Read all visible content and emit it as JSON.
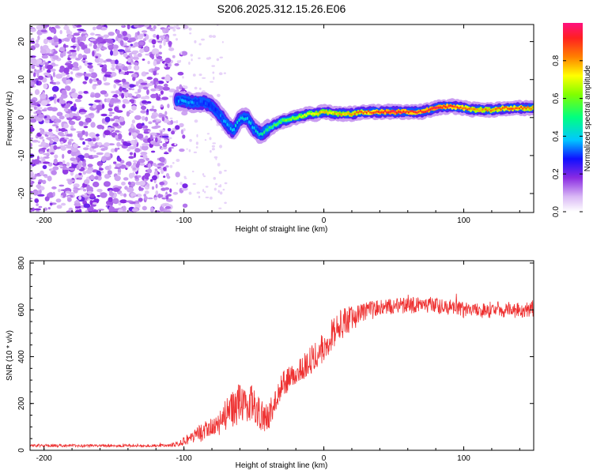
{
  "title": "S206.2025.312.15.26.E06",
  "chart_data": [
    {
      "type": "heatmap",
      "name": "spectrogram",
      "xlabel": "Height of straight line (km)",
      "ylabel": "Frequency (Hz)",
      "xlim": [
        -210,
        150
      ],
      "ylim": [
        -25,
        24.5
      ],
      "xticks": [
        -200,
        -100,
        0,
        100
      ],
      "yticks": [
        -20,
        -10,
        0,
        10,
        20
      ],
      "noise_region_x": [
        -210,
        -110
      ],
      "ridge": {
        "x": [
          -105,
          -100,
          -95,
          -90,
          -85,
          -80,
          -75,
          -70,
          -65,
          -60,
          -55,
          -50,
          -45,
          -40,
          -35,
          -30,
          -25,
          -20,
          -15,
          -10,
          -5,
          0,
          10,
          20,
          30,
          40,
          50,
          60,
          70,
          80,
          90,
          100,
          110,
          120,
          130,
          140,
          150
        ],
        "freq": [
          4.5,
          4.5,
          4.0,
          4.0,
          4.0,
          3.0,
          1.0,
          -1.5,
          -3.5,
          -0.5,
          0,
          -3.0,
          -4.5,
          -3.0,
          -2.0,
          -1.0,
          -0.5,
          0,
          0.5,
          1.0,
          1.0,
          1.5,
          1.0,
          1.0,
          1.5,
          1.5,
          1.5,
          1.5,
          1.5,
          2.5,
          3.0,
          2.5,
          2.0,
          2.0,
          2.5,
          2.5,
          2.5
        ],
        "amplitude": [
          0.3,
          0.35,
          0.35,
          0.3,
          0.3,
          0.3,
          0.3,
          0.35,
          0.4,
          0.4,
          0.4,
          0.4,
          0.45,
          0.5,
          0.55,
          0.6,
          0.6,
          0.65,
          0.7,
          0.7,
          0.75,
          0.75,
          0.75,
          0.8,
          0.85,
          0.9,
          0.95,
          0.9,
          0.9,
          0.95,
          0.9,
          0.85,
          0.8,
          0.8,
          0.85,
          0.85,
          0.8
        ]
      },
      "colorbar": {
        "label": "Normalized spectral amplitude",
        "range": [
          0,
          1
        ],
        "ticks": [
          "0.0",
          "0.2",
          "0.4",
          "0.6",
          "0.8"
        ],
        "tick_values": [
          0,
          0.2,
          0.4,
          0.6,
          0.8
        ]
      }
    },
    {
      "type": "line",
      "name": "snr",
      "xlabel": "Height of straight line (km)",
      "ylabel": "SNR (10 * v/v)",
      "xlim": [
        -210,
        150
      ],
      "ylim": [
        0,
        810
      ],
      "xticks": [
        -200,
        -100,
        0,
        100
      ],
      "yticks": [
        0,
        200,
        400,
        600,
        800
      ],
      "color": "#ee3030",
      "trend": {
        "x": [
          -210,
          -110,
          -100,
          -90,
          -80,
          -70,
          -60,
          -50,
          -45,
          -40,
          -35,
          -30,
          -20,
          -10,
          0,
          10,
          20,
          30,
          40,
          60,
          80,
          100,
          120,
          150
        ],
        "y": [
          20,
          20,
          40,
          70,
          90,
          150,
          200,
          200,
          150,
          140,
          200,
          280,
          330,
          380,
          450,
          530,
          560,
          590,
          610,
          620,
          620,
          600,
          600,
          600
        ]
      },
      "noise_amplitude": {
        "x": [
          -210,
          -110,
          -100,
          -80,
          -60,
          -40,
          -20,
          0,
          20,
          40,
          150
        ],
        "y": [
          6,
          6,
          20,
          50,
          90,
          60,
          50,
          70,
          60,
          35,
          35
        ]
      }
    }
  ]
}
